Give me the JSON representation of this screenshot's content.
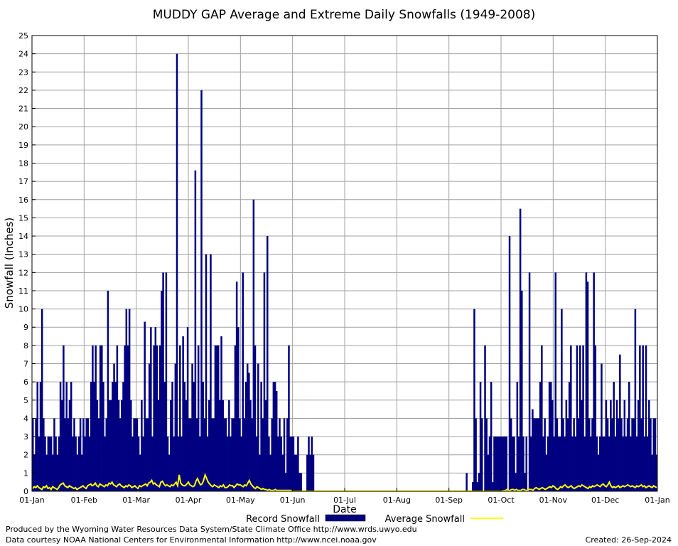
{
  "chart_data": {
    "type": "bar",
    "title": "MUDDY GAP Average and Extreme Daily Snowfalls (1949-2008)",
    "xlabel": "Date",
    "ylabel": "Snowfall (Inches)",
    "ylim": [
      0,
      25
    ],
    "yticks": [
      "0",
      "1",
      "2",
      "3",
      "4",
      "5",
      "6",
      "7",
      "8",
      "9",
      "10",
      "11",
      "12",
      "13",
      "14",
      "15",
      "16",
      "17",
      "18",
      "19",
      "20",
      "21",
      "22",
      "23",
      "24",
      "25"
    ],
    "xticks": [
      "01-Jan",
      "01-Feb",
      "01-Mar",
      "01-Apr",
      "01-May",
      "01-Jun",
      "01-Jul",
      "01-Aug",
      "01-Sep",
      "01-Oct",
      "01-Nov",
      "01-Dec",
      "01-Jan"
    ],
    "grid": true,
    "legend_position": "bottom",
    "colors": {
      "record": "#000080",
      "average": "#ffff00",
      "grid": "#a0a0a0"
    },
    "series": [
      {
        "name": "Record Snowfall",
        "style": "bar",
        "values": [
          4,
          2,
          4,
          6,
          3,
          6,
          10,
          4,
          3,
          2,
          3,
          3,
          3,
          2,
          4,
          3,
          2,
          3,
          6,
          5,
          8,
          4,
          6,
          4,
          5,
          6,
          3,
          4,
          3,
          2,
          3,
          4,
          2,
          4,
          3,
          4,
          4,
          3,
          6,
          8,
          6,
          8,
          5,
          4,
          8,
          8,
          6,
          3,
          4,
          11,
          5,
          5,
          6,
          7,
          6,
          8,
          5,
          4,
          5,
          6,
          8,
          10,
          8,
          10,
          5,
          3,
          4,
          4,
          4,
          3,
          2,
          5,
          3,
          9.3,
          4,
          4,
          7,
          9,
          3,
          8,
          9,
          8,
          5,
          8,
          11,
          12,
          6,
          12,
          3,
          2,
          5,
          6,
          3,
          7,
          24,
          3,
          8,
          3,
          8.5,
          6,
          5,
          9,
          4,
          4,
          7,
          6,
          17.6,
          4,
          8,
          3,
          22,
          6,
          4,
          13,
          3,
          5,
          13,
          4,
          4,
          8,
          8,
          8,
          5,
          8.5,
          5,
          4,
          4,
          3,
          5,
          3,
          4,
          4,
          8,
          11.5,
          9,
          4,
          3,
          12,
          4,
          6,
          7,
          6.5,
          5,
          4,
          16,
          8,
          3,
          7,
          2,
          6,
          4,
          12,
          5,
          14,
          3,
          2,
          4,
          6,
          6,
          5.5,
          3,
          4,
          3,
          2,
          4,
          1,
          4,
          8,
          3,
          3,
          3,
          2,
          2,
          3,
          1,
          1,
          0,
          0,
          0,
          2,
          3,
          2,
          3,
          2,
          0,
          0,
          0,
          0,
          0,
          0,
          0,
          0,
          0,
          0,
          0,
          0,
          0,
          0,
          0,
          0,
          0,
          0,
          0,
          0,
          0,
          0,
          0,
          0,
          0,
          0,
          0,
          0,
          0,
          0,
          0,
          0,
          0,
          0,
          0,
          0,
          0,
          0,
          0,
          0,
          0,
          0,
          0,
          0,
          0,
          0,
          0,
          0,
          0,
          0,
          0,
          0,
          0,
          0,
          0,
          0,
          0,
          0,
          0,
          0,
          0,
          0,
          0,
          0,
          0,
          0,
          0,
          0,
          0,
          0,
          0,
          0,
          0,
          0,
          0,
          0,
          0,
          0,
          0,
          0,
          0,
          0,
          0,
          0,
          0,
          0,
          0,
          0,
          0,
          0,
          0,
          0,
          0,
          0,
          0,
          0,
          0,
          0,
          0,
          1,
          0,
          0,
          0,
          0.5,
          10,
          4,
          0.5,
          1,
          6,
          4,
          0,
          8,
          4,
          2,
          3,
          6,
          0.5,
          3,
          3,
          3,
          3,
          3,
          3,
          3,
          3,
          3,
          0,
          14,
          4,
          3,
          3,
          1,
          6,
          3,
          15.5,
          11,
          3,
          1,
          3,
          0,
          12,
          3,
          4.5,
          4,
          4,
          4,
          4,
          6,
          8,
          3,
          4,
          2,
          3,
          6,
          6,
          5,
          3,
          12,
          4,
          3,
          3,
          10,
          4,
          3,
          5,
          4,
          6,
          8,
          3,
          4,
          3,
          8,
          4,
          8,
          5,
          8,
          3,
          12,
          11.5,
          4,
          3,
          4,
          12,
          8,
          3,
          2,
          3,
          7,
          3,
          3,
          5,
          4,
          3,
          5,
          4,
          6,
          3,
          5,
          4,
          7.5,
          4,
          3,
          5,
          3,
          4,
          6,
          3,
          4,
          4,
          10,
          3,
          5,
          8,
          4,
          8,
          3,
          8,
          3,
          5,
          4,
          2,
          4,
          4,
          2
        ],
        "aggregation": "daily"
      },
      {
        "name": "Average Snowfall",
        "style": "line",
        "values": [
          0.15,
          0.25,
          0.2,
          0.3,
          0.2,
          0.15,
          0.1,
          0.25,
          0.2,
          0.3,
          0.15,
          0.2,
          0.1,
          0.25,
          0.2,
          0.15,
          0.1,
          0.2,
          0.35,
          0.4,
          0.45,
          0.3,
          0.25,
          0.2,
          0.3,
          0.25,
          0.2,
          0.15,
          0.2,
          0.1,
          0.15,
          0.2,
          0.25,
          0.3,
          0.2,
          0.15,
          0.3,
          0.35,
          0.4,
          0.3,
          0.35,
          0.45,
          0.3,
          0.25,
          0.4,
          0.35,
          0.3,
          0.25,
          0.35,
          0.3,
          0.45,
          0.4,
          0.5,
          0.35,
          0.3,
          0.25,
          0.35,
          0.4,
          0.3,
          0.25,
          0.2,
          0.3,
          0.25,
          0.35,
          0.3,
          0.2,
          0.25,
          0.3,
          0.2,
          0.15,
          0.3,
          0.25,
          0.3,
          0.35,
          0.4,
          0.3,
          0.45,
          0.5,
          0.6,
          0.4,
          0.45,
          0.35,
          0.3,
          0.25,
          0.5,
          0.55,
          0.4,
          0.3,
          0.35,
          0.3,
          0.25,
          0.35,
          0.3,
          0.4,
          0.5,
          0.3,
          0.9,
          0.45,
          0.35,
          0.3,
          0.3,
          0.4,
          0.5,
          0.35,
          0.3,
          0.25,
          0.3,
          0.55,
          0.7,
          0.5,
          0.35,
          0.4,
          0.6,
          0.9,
          0.7,
          0.5,
          0.4,
          0.3,
          0.25,
          0.35,
          0.3,
          0.25,
          0.2,
          0.3,
          0.25,
          0.35,
          0.2,
          0.2,
          0.25,
          0.35,
          0.3,
          0.3,
          0.2,
          0.3,
          0.4,
          0.35,
          0.35,
          0.3,
          0.25,
          0.35,
          0.3,
          0.45,
          0.6,
          0.4,
          0.3,
          0.2,
          0.15,
          0.25,
          0.2,
          0.15,
          0.1,
          0.15,
          0.1,
          0.1,
          0.05,
          0.1,
          0.05,
          0.05,
          0.05,
          0.1,
          0.05,
          0.05,
          0.05,
          0.05,
          0.05,
          0.05,
          0.05,
          0.05,
          0.05,
          0.05,
          0,
          0,
          0,
          0,
          0,
          0,
          0,
          0,
          0,
          0,
          0,
          0,
          0,
          0,
          0,
          0,
          0,
          0,
          0,
          0,
          0,
          0,
          0,
          0,
          0,
          0,
          0,
          0,
          0,
          0,
          0,
          0,
          0,
          0,
          0,
          0,
          0,
          0,
          0,
          0,
          0,
          0,
          0,
          0,
          0,
          0,
          0,
          0,
          0,
          0,
          0,
          0,
          0,
          0,
          0,
          0,
          0,
          0,
          0,
          0,
          0,
          0,
          0,
          0,
          0,
          0,
          0,
          0,
          0,
          0,
          0,
          0,
          0,
          0,
          0,
          0,
          0,
          0,
          0,
          0,
          0,
          0,
          0,
          0,
          0,
          0,
          0,
          0,
          0,
          0,
          0,
          0,
          0,
          0,
          0,
          0,
          0,
          0,
          0,
          0,
          0,
          0,
          0,
          0,
          0,
          0,
          0,
          0,
          0,
          0,
          0,
          0,
          0,
          0,
          0,
          0,
          0,
          0,
          0,
          0,
          0,
          0,
          0,
          0,
          0,
          0,
          0,
          0,
          0,
          0,
          0,
          0,
          0,
          0,
          0,
          0,
          0,
          0,
          0.02,
          0.02,
          0.05,
          0.1,
          0.05,
          0.05,
          0.1,
          0.1,
          0.05,
          0.1,
          0.05,
          0.05,
          0.05,
          0.1,
          0.1,
          0.05,
          0.05,
          0.1,
          0.1,
          0.1,
          0.05,
          0.15,
          0.2,
          0.15,
          0.1,
          0.15,
          0.2,
          0.15,
          0.1,
          0.15,
          0.2,
          0.25,
          0.2,
          0.3,
          0.25,
          0.15,
          0.1,
          0.15,
          0.25,
          0.2,
          0.3,
          0.35,
          0.25,
          0.2,
          0.25,
          0.3,
          0.2,
          0.15,
          0.2,
          0.25,
          0.3,
          0.25,
          0.35,
          0.3,
          0.25,
          0.2,
          0.15,
          0.25,
          0.2,
          0.3,
          0.25,
          0.3,
          0.35,
          0.3,
          0.25,
          0.35,
          0.4,
          0.3,
          0.25,
          0.35,
          0.5,
          0.3,
          0.2,
          0.25,
          0.2,
          0.25,
          0.3,
          0.2,
          0.25,
          0.3,
          0.25,
          0.3,
          0.35,
          0.3,
          0.25,
          0.3,
          0.25,
          0.2,
          0.3,
          0.25,
          0.3,
          0.35,
          0.25,
          0.3,
          0.2,
          0.25,
          0.3,
          0.25,
          0.2,
          0.3,
          0.25,
          0.2
        ]
      }
    ]
  },
  "footer": {
    "produced_by": "Produced by the Wyoming Water Resources Data System/State Climate Office http://www.wrds.uwyo.edu",
    "courtesy": "Data courtesy NOAA National Centers for Environmental Information http://www.ncei.noaa.gov",
    "created": "Created:  26-Sep-2024"
  }
}
